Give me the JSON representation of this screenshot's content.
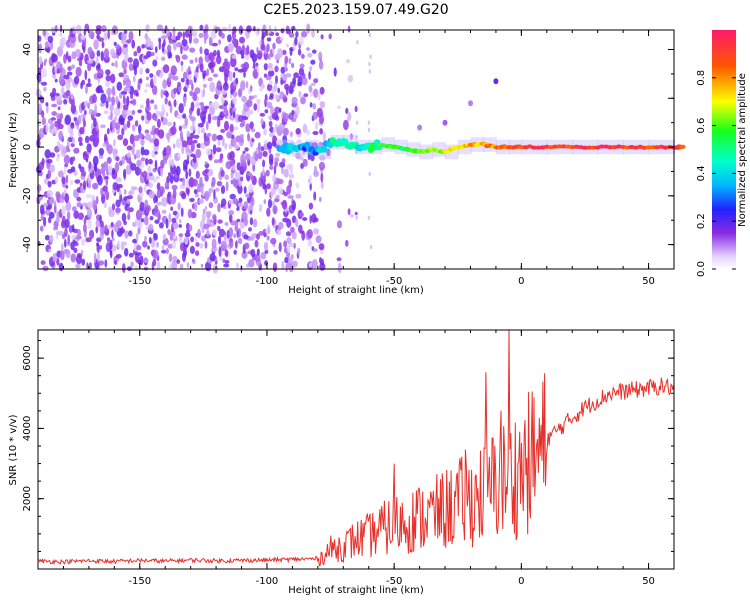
{
  "figure_title": "C2E5.2023.159.07.49.G20",
  "colors": {
    "spectrum_low": "#7a2cf0",
    "spectrum_mid": "#00e676",
    "spectrum_high": "#ff1744",
    "snr_line": "#e8302a"
  },
  "chart_data": [
    {
      "type": "heatmap",
      "xlabel": "Height of straight line (km)",
      "ylabel": "Frequency (Hz)",
      "xlim": [
        -190,
        60
      ],
      "ylim": [
        -50,
        48
      ],
      "x_ticks": [
        -150,
        -100,
        -50,
        0,
        50
      ],
      "y_ticks": [
        -40,
        -20,
        0,
        20,
        40
      ],
      "colorbar": {
        "label": "Normalized spectral amplitude",
        "range": [
          0,
          1
        ],
        "ticks": [
          "0.0",
          "0.2",
          "0.4",
          "0.6",
          "0.8"
        ]
      },
      "noise_region_x": [
        -190,
        -80
      ],
      "signal_trace": {
        "x": [
          -95,
          -90,
          -85,
          -80,
          -75,
          -70,
          -65,
          -60,
          -55,
          -50,
          -45,
          -40,
          -35,
          -30,
          -25,
          -20,
          -15,
          -10,
          -5,
          0,
          10,
          20,
          30,
          40,
          50,
          60
        ],
        "frequency": [
          0,
          -1,
          0,
          -2,
          2,
          2,
          0,
          0,
          1,
          0,
          -1,
          -2,
          -1,
          -2,
          0,
          1,
          1,
          0,
          0,
          0,
          0,
          0,
          0,
          0,
          0,
          0
        ],
        "normalized_amplitude": [
          0.45,
          0.4,
          0.35,
          0.4,
          0.5,
          0.5,
          0.5,
          0.55,
          0.6,
          0.6,
          0.65,
          0.7,
          0.7,
          0.75,
          0.8,
          0.8,
          0.85,
          0.9,
          0.9,
          0.95,
          0.95,
          0.95,
          0.95,
          0.95,
          0.95,
          0.95
        ]
      }
    },
    {
      "type": "line",
      "xlabel": "Height of straight line (km)",
      "ylabel": "SNR (10 * v/v)",
      "xlim": [
        -190,
        60
      ],
      "ylim": [
        0,
        6800
      ],
      "x_ticks": [
        -150,
        -100,
        -50,
        0,
        50
      ],
      "y_ticks": [
        2000,
        4000,
        6000
      ],
      "series": [
        {
          "x": [
            -190,
            -180,
            -170,
            -160,
            -150,
            -140,
            -130,
            -120,
            -110,
            -100,
            -90,
            -80,
            -75,
            -70,
            -65,
            -60,
            -55,
            -50,
            -45,
            -40,
            -35,
            -30,
            -25,
            -20,
            -15,
            -10,
            -5,
            0,
            5,
            10,
            15,
            20,
            25,
            30,
            35,
            40,
            45,
            50,
            55,
            60
          ],
          "values": [
            200,
            180,
            210,
            190,
            220,
            200,
            230,
            210,
            220,
            230,
            250,
            270,
            600,
            700,
            900,
            1000,
            1200,
            1350,
            1450,
            1550,
            1650,
            1800,
            2000,
            2100,
            2300,
            2600,
            2750,
            3000,
            3350,
            3700,
            4000,
            4300,
            4600,
            4800,
            5000,
            5050,
            5100,
            5150,
            5200,
            5150
          ],
          "spikes": [
            {
              "x": -50,
              "value": 3000
            },
            {
              "x": -22,
              "value": 3400
            },
            {
              "x": -14,
              "value": 5600
            },
            {
              "x": -8,
              "value": 4500
            },
            {
              "x": -5,
              "value": 6800
            }
          ]
        }
      ]
    }
  ]
}
